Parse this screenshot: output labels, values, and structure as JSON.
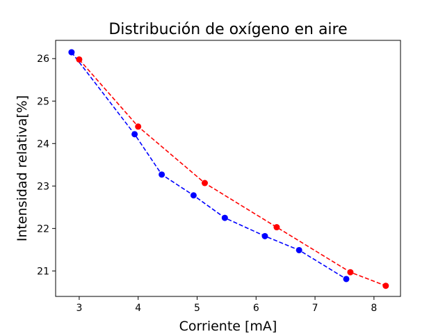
{
  "chart_data": {
    "type": "line",
    "title": "Distribución de oxígeno en aire",
    "xlabel": "Corriente [mA]",
    "ylabel": "Intensidad relativa[%]",
    "xlim": [
      2.6,
      8.45
    ],
    "ylim": [
      20.4,
      26.43
    ],
    "xticks": [
      3,
      4,
      5,
      6,
      7,
      8
    ],
    "yticks": [
      21,
      22,
      23,
      24,
      25,
      26
    ],
    "grid": false,
    "line_style": "dashed",
    "marker": "circle",
    "series": [
      {
        "color": "#0000ff",
        "x": [
          2.87,
          3.94,
          4.4,
          4.94,
          5.47,
          6.15,
          6.73,
          7.53
        ],
        "y": [
          26.15,
          24.22,
          23.27,
          22.78,
          22.25,
          21.82,
          21.49,
          20.81
        ]
      },
      {
        "color": "#ff0000",
        "x": [
          3.0,
          4.0,
          5.13,
          6.35,
          7.6,
          8.2
        ],
        "y": [
          25.98,
          24.4,
          23.07,
          22.03,
          20.97,
          20.65
        ]
      }
    ]
  }
}
